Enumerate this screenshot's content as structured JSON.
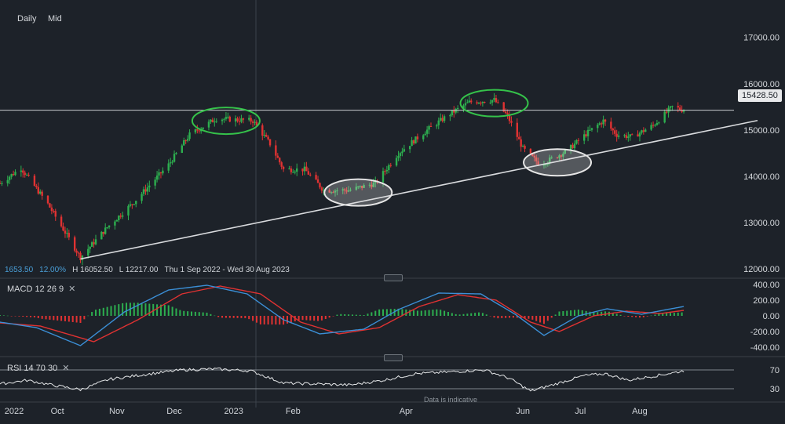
{
  "toolbar": {
    "daily_label": "Daily",
    "mid_label": "Mid"
  },
  "stats": {
    "value1": "1653.50",
    "value2": "12.00%",
    "high": "H 16052.50",
    "low": "L 12217.00",
    "range": "Thu 1 Sep 2022 - Wed 30 Aug 2023"
  },
  "last_price": "15428.50",
  "indicators": {
    "macd_label": "MACD  12  26  9",
    "rsi_label": "RSI  14  70  30",
    "close_symbol": "✕"
  },
  "disclaimer": "Data is indicative",
  "colors": {
    "up": "#2dae4f",
    "down": "#e03232",
    "ellipse_green": "#35c24a",
    "ellipse_white": "#e6e6e6",
    "macd_line": "#3b8fd6",
    "signal_line": "#e03232"
  },
  "chart_data": [
    {
      "type": "candlestick",
      "title": "",
      "x_ticks": [
        "2022",
        "Oct",
        "Nov",
        "Dec",
        "2023",
        "Feb",
        "Apr",
        "Jun",
        "Jul",
        "Aug"
      ],
      "y_ticks": [
        "12000.00",
        "13000.00",
        "14000.00",
        "15000.00",
        "16000.00",
        "17000.00"
      ],
      "ylim": [
        11800,
        17300
      ],
      "high": 16052.5,
      "low": 12217.0,
      "last": 15428.5,
      "horizontal_line": 15428.5,
      "trendline": [
        {
          "x": "2022-10-13",
          "y": 12217
        },
        {
          "x": "2023-08-24",
          "y": 14880
        }
      ],
      "anchors": [
        {
          "x": "2022-09-01",
          "y": 13850
        },
        {
          "x": "2022-09-12",
          "y": 14180
        },
        {
          "x": "2022-09-26",
          "y": 13400
        },
        {
          "x": "2022-10-13",
          "y": 12250
        },
        {
          "x": "2022-10-27",
          "y": 12900
        },
        {
          "x": "2022-11-10",
          "y": 13450
        },
        {
          "x": "2022-11-28",
          "y": 14250
        },
        {
          "x": "2022-12-09",
          "y": 14900
        },
        {
          "x": "2022-12-23",
          "y": 15250
        },
        {
          "x": "2023-01-11",
          "y": 15200
        },
        {
          "x": "2023-01-20",
          "y": 14700
        },
        {
          "x": "2023-01-27",
          "y": 14150
        },
        {
          "x": "2023-02-07",
          "y": 14150
        },
        {
          "x": "2023-02-17",
          "y": 13700
        },
        {
          "x": "2023-03-02",
          "y": 13700
        },
        {
          "x": "2023-03-16",
          "y": 13850
        },
        {
          "x": "2023-03-28",
          "y": 14500
        },
        {
          "x": "2023-04-12",
          "y": 15000
        },
        {
          "x": "2023-04-24",
          "y": 15350
        },
        {
          "x": "2023-05-04",
          "y": 15600
        },
        {
          "x": "2023-05-17",
          "y": 15650
        },
        {
          "x": "2023-05-24",
          "y": 15300
        },
        {
          "x": "2023-06-01",
          "y": 14600
        },
        {
          "x": "2023-06-10",
          "y": 14250
        },
        {
          "x": "2023-06-24",
          "y": 14550
        },
        {
          "x": "2023-07-05",
          "y": 14950
        },
        {
          "x": "2023-07-13",
          "y": 15200
        },
        {
          "x": "2023-07-20",
          "y": 14900
        },
        {
          "x": "2023-07-28",
          "y": 14850
        },
        {
          "x": "2023-08-08",
          "y": 15100
        },
        {
          "x": "2023-08-18",
          "y": 15500
        },
        {
          "x": "2023-08-24",
          "y": 15428.5
        }
      ],
      "ellipses": [
        {
          "color": "green",
          "x_center": "2022-12-28",
          "y_center": 15200
        },
        {
          "color": "white",
          "x_center": "2023-03-07",
          "y_center": 13650
        },
        {
          "color": "green",
          "x_center": "2023-05-17",
          "y_center": 15580
        },
        {
          "color": "white",
          "x_center": "2023-06-19",
          "y_center": 14300
        }
      ]
    },
    {
      "type": "line",
      "title": "MACD 12 26 9",
      "y_ticks": [
        "400.00",
        "200.00",
        "0.00",
        "-200.00",
        "-400.00"
      ],
      "ylim": [
        -470,
        450
      ],
      "series": [
        {
          "name": "MACD",
          "anchors": [
            {
              "x": "2022-09-01",
              "y": -80
            },
            {
              "x": "2022-09-20",
              "y": -150
            },
            {
              "x": "2022-10-13",
              "y": -380
            },
            {
              "x": "2022-11-05",
              "y": 50
            },
            {
              "x": "2022-11-28",
              "y": 330
            },
            {
              "x": "2022-12-18",
              "y": 390
            },
            {
              "x": "2023-01-08",
              "y": 280
            },
            {
              "x": "2023-01-27",
              "y": -50
            },
            {
              "x": "2023-02-15",
              "y": -230
            },
            {
              "x": "2023-03-10",
              "y": -170
            },
            {
              "x": "2023-03-28",
              "y": 80
            },
            {
              "x": "2023-04-18",
              "y": 290
            },
            {
              "x": "2023-05-10",
              "y": 280
            },
            {
              "x": "2023-05-28",
              "y": 20
            },
            {
              "x": "2023-06-12",
              "y": -250
            },
            {
              "x": "2023-06-30",
              "y": 0
            },
            {
              "x": "2023-07-15",
              "y": 90
            },
            {
              "x": "2023-08-02",
              "y": 20
            },
            {
              "x": "2023-08-24",
              "y": 120
            }
          ]
        },
        {
          "name": "Signal",
          "anchors": [
            {
              "x": "2022-09-01",
              "y": -90
            },
            {
              "x": "2022-09-22",
              "y": -130
            },
            {
              "x": "2022-10-20",
              "y": -330
            },
            {
              "x": "2022-11-12",
              "y": -50
            },
            {
              "x": "2022-12-05",
              "y": 280
            },
            {
              "x": "2022-12-25",
              "y": 380
            },
            {
              "x": "2023-01-15",
              "y": 280
            },
            {
              "x": "2023-02-05",
              "y": -80
            },
            {
              "x": "2023-02-25",
              "y": -230
            },
            {
              "x": "2023-03-18",
              "y": -150
            },
            {
              "x": "2023-04-08",
              "y": 120
            },
            {
              "x": "2023-04-28",
              "y": 270
            },
            {
              "x": "2023-05-18",
              "y": 200
            },
            {
              "x": "2023-06-05",
              "y": -80
            },
            {
              "x": "2023-06-20",
              "y": -200
            },
            {
              "x": "2023-07-08",
              "y": 0
            },
            {
              "x": "2023-07-25",
              "y": 60
            },
            {
              "x": "2023-08-12",
              "y": 30
            },
            {
              "x": "2023-08-24",
              "y": 70
            }
          ]
        }
      ]
    },
    {
      "type": "line",
      "title": "RSI 14 70 30",
      "y_ticks": [
        "70",
        "30"
      ],
      "ylim": [
        15,
        90
      ],
      "series": [
        {
          "name": "RSI",
          "anchors": [
            {
              "x": "2022-09-01",
              "y": 40
            },
            {
              "x": "2022-09-15",
              "y": 48
            },
            {
              "x": "2022-09-28",
              "y": 38
            },
            {
              "x": "2022-10-13",
              "y": 28
            },
            {
              "x": "2022-10-28",
              "y": 50
            },
            {
              "x": "2022-11-15",
              "y": 60
            },
            {
              "x": "2022-12-05",
              "y": 70
            },
            {
              "x": "2022-12-22",
              "y": 72
            },
            {
              "x": "2023-01-10",
              "y": 68
            },
            {
              "x": "2023-01-27",
              "y": 42
            },
            {
              "x": "2023-02-15",
              "y": 40
            },
            {
              "x": "2023-03-03",
              "y": 38
            },
            {
              "x": "2023-03-20",
              "y": 48
            },
            {
              "x": "2023-04-06",
              "y": 62
            },
            {
              "x": "2023-04-25",
              "y": 66
            },
            {
              "x": "2023-05-12",
              "y": 70
            },
            {
              "x": "2023-05-25",
              "y": 52
            },
            {
              "x": "2023-06-05",
              "y": 25
            },
            {
              "x": "2023-06-18",
              "y": 40
            },
            {
              "x": "2023-07-03",
              "y": 58
            },
            {
              "x": "2023-07-14",
              "y": 62
            },
            {
              "x": "2023-07-26",
              "y": 48
            },
            {
              "x": "2023-08-10",
              "y": 58
            },
            {
              "x": "2023-08-24",
              "y": 68
            }
          ]
        }
      ]
    }
  ]
}
